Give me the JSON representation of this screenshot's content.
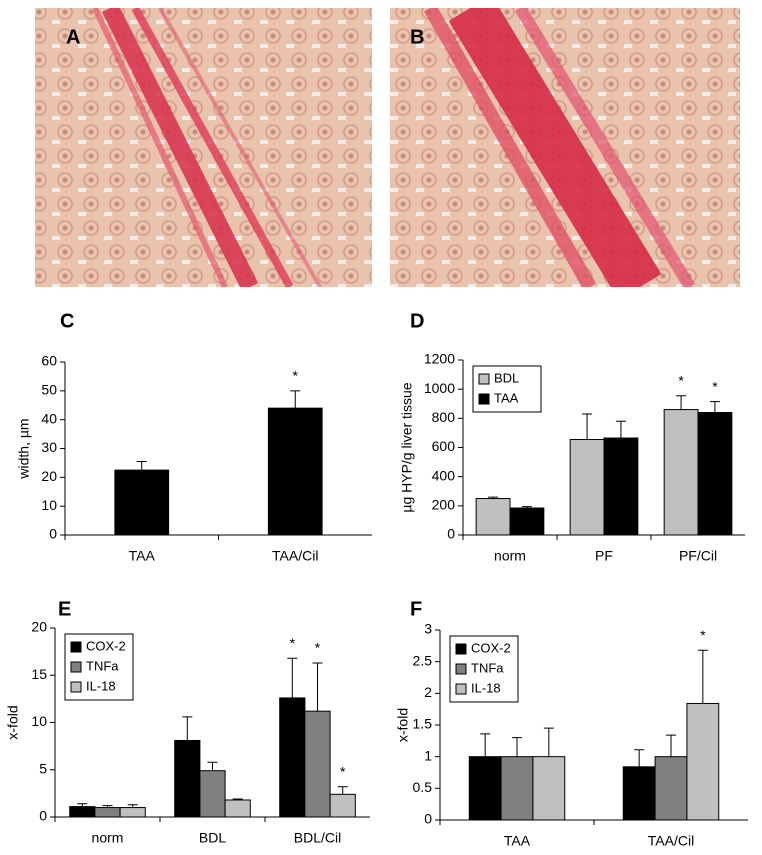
{
  "images": [
    {
      "label": "A"
    },
    {
      "label": "B"
    }
  ],
  "chart_data": [
    {
      "type": "bar",
      "panel": "C",
      "ylabel": "width, µm",
      "categories": [
        "TAA",
        "TAA/Cil"
      ],
      "values": [
        22.5,
        44
      ],
      "errors": [
        3,
        6
      ],
      "significance": [
        null,
        "*"
      ],
      "color": "#000000",
      "ylim": [
        0,
        60
      ],
      "yticks": [
        0,
        10,
        20,
        30,
        40,
        50,
        60
      ]
    },
    {
      "type": "bar",
      "panel": "D",
      "ylabel": "µg HYP/g liver tissue",
      "categories": [
        "norm",
        "PF",
        "PF/Cil"
      ],
      "legend": "upper left",
      "series": [
        {
          "name": "BDL",
          "color": "#c0c0c0",
          "values": [
            250,
            655,
            860
          ],
          "errors": [
            10,
            175,
            95
          ],
          "significance": [
            null,
            null,
            "*"
          ]
        },
        {
          "name": "TAA",
          "color": "#000000",
          "values": [
            185,
            665,
            840
          ],
          "errors": [
            10,
            115,
            75
          ],
          "significance": [
            null,
            null,
            "*"
          ]
        }
      ],
      "ylim": [
        0,
        1200
      ],
      "yticks": [
        0,
        200,
        400,
        600,
        800,
        1000,
        1200
      ]
    },
    {
      "type": "bar",
      "panel": "E",
      "ylabel": "x-fold",
      "categories": [
        "norm",
        "BDL",
        "BDL/Cil"
      ],
      "legend": "upper left",
      "series": [
        {
          "name": "COX-2",
          "color": "#000000",
          "values": [
            1.1,
            8.1,
            12.6
          ],
          "errors": [
            0.3,
            2.5,
            4.2
          ],
          "significance": [
            null,
            null,
            "*"
          ]
        },
        {
          "name": "TNFa",
          "color": "#808080",
          "values": [
            1.0,
            4.9,
            11.2
          ],
          "errors": [
            0.2,
            0.9,
            5.1
          ],
          "significance": [
            null,
            null,
            "*"
          ]
        },
        {
          "name": "IL-18",
          "color": "#c0c0c0",
          "values": [
            1.0,
            1.8,
            2.4
          ],
          "errors": [
            0.3,
            0.1,
            0.8
          ],
          "significance": [
            null,
            null,
            "*"
          ]
        }
      ],
      "ylim": [
        0,
        20
      ],
      "yticks": [
        0,
        5,
        10,
        15,
        20
      ]
    },
    {
      "type": "bar",
      "panel": "F",
      "ylabel": "x-fold",
      "categories": [
        "TAA",
        "TAA/Cil"
      ],
      "legend": "upper left",
      "series": [
        {
          "name": "COX-2",
          "color": "#000000",
          "values": [
            1.0,
            0.84
          ],
          "errors": [
            0.36,
            0.27
          ],
          "significance": [
            null,
            null
          ]
        },
        {
          "name": "TNFa",
          "color": "#808080",
          "values": [
            1.0,
            1.0
          ],
          "errors": [
            0.3,
            0.34
          ],
          "significance": [
            null,
            null
          ]
        },
        {
          "name": "IL-18",
          "color": "#c0c0c0",
          "values": [
            1.0,
            1.84
          ],
          "errors": [
            0.45,
            0.84
          ],
          "significance": [
            null,
            "*"
          ]
        }
      ],
      "ylim": [
        0,
        3
      ],
      "yticks": [
        0,
        0.5,
        1,
        1.5,
        2,
        2.5,
        3
      ]
    }
  ]
}
